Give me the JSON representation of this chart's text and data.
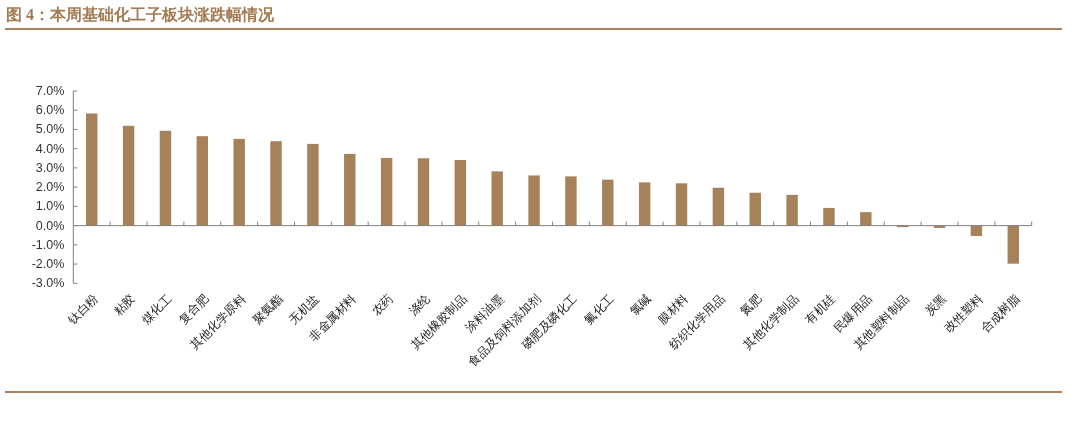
{
  "chart_data": {
    "type": "bar",
    "title": "图 4：本周基础化工子板块涨跌幅情况",
    "categories": [
      "钛白粉",
      "粘胶",
      "煤化工",
      "复合肥",
      "其他化学原料",
      "聚氨酯",
      "无机盐",
      "非金属材料",
      "农药",
      "涤纶",
      "其他橡胶制品",
      "涂料油墨",
      "食品及饲料添加剂",
      "磷肥及磷化工",
      "氟化工",
      "氯碱",
      "膜材料",
      "纺织化学用品",
      "氮肥",
      "其他化学制品",
      "有机硅",
      "民爆用品",
      "其他塑料制品",
      "炭黑",
      "改性塑料",
      "合成树脂"
    ],
    "values": [
      5.83,
      5.19,
      4.93,
      4.65,
      4.51,
      4.39,
      4.25,
      3.73,
      3.52,
      3.5,
      3.41,
      2.82,
      2.61,
      2.56,
      2.39,
      2.25,
      2.2,
      1.97,
      1.71,
      1.6,
      0.92,
      0.7,
      -0.08,
      -0.12,
      -0.54,
      -1.98
    ],
    "color": "#a6825a",
    "ylim": [
      -3,
      7
    ],
    "yticks": [
      {
        "value": -3,
        "label": "-3.0%"
      },
      {
        "value": -2,
        "label": "-2.0%"
      },
      {
        "value": -1,
        "label": "-1.0%"
      },
      {
        "value": 0,
        "label": "0.0%"
      },
      {
        "value": 1,
        "label": "1.0%"
      },
      {
        "value": 2,
        "label": "2.0%"
      },
      {
        "value": 3,
        "label": "3.0%"
      },
      {
        "value": 4,
        "label": "4.0%"
      },
      {
        "value": 5,
        "label": "5.0%"
      },
      {
        "value": 6,
        "label": "6.0%"
      },
      {
        "value": 7,
        "label": "7.0%"
      }
    ]
  }
}
